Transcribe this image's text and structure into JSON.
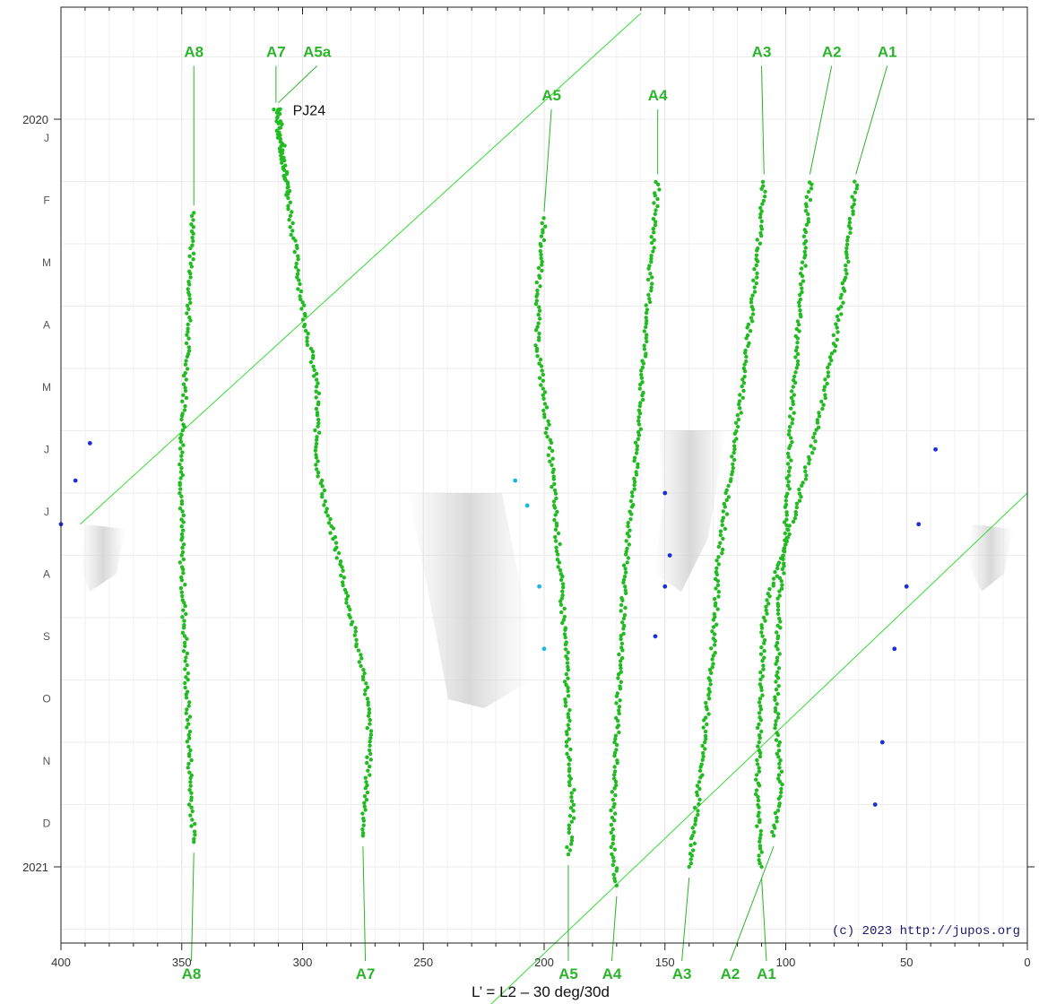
{
  "chart_data": {
    "type": "scatter",
    "title": "",
    "xlabel": "L’ = L2 – 30 deg/30d",
    "ylabel": "",
    "xlim": [
      400,
      0
    ],
    "x_reversed": true,
    "x_ticks": [
      "400",
      "350",
      "300",
      "250",
      "200",
      "150",
      "100",
      "50",
      "0"
    ],
    "y_years": [
      {
        "label": "2020",
        "month_index": 0
      },
      {
        "label": "2021",
        "month_index": 12
      }
    ],
    "y_months": [
      "J",
      "F",
      "M",
      "A",
      "M",
      "J",
      "J",
      "A",
      "S",
      "O",
      "N",
      "D"
    ],
    "ylim_month_index": [
      -1.1,
      13.0
    ],
    "grid": true,
    "credit": "(c) 2023 http://jupos.org",
    "annotation": {
      "text": "PJ24",
      "x": 307,
      "month": -0.15
    },
    "colors": {
      "track": "#22bb22",
      "other": "#111111",
      "blue": "#1a2fd6",
      "cyan": "#19b8e0",
      "label": "#2ab52a",
      "drift_line": "#33dd33"
    },
    "drift_lines": [
      {
        "x1": 392,
        "m1": 6.5,
        "x2": 160,
        "m2": -1.7
      },
      {
        "x1": 230,
        "m1": 14.5,
        "x2": 0,
        "m2": 6.0
      }
    ],
    "series": [
      {
        "name": "A8",
        "points": [
          [
            345,
            1.5
          ],
          [
            346,
            2.2
          ],
          [
            347,
            3
          ],
          [
            348,
            4
          ],
          [
            349,
            4.6
          ],
          [
            350,
            5.3
          ],
          [
            350,
            6
          ],
          [
            350,
            7
          ],
          [
            349,
            8
          ],
          [
            348,
            9
          ],
          [
            347,
            10
          ],
          [
            346,
            11
          ],
          [
            345,
            11.6
          ]
        ],
        "top_label": {
          "x": 345,
          "month": -1
        },
        "bottom_label": {
          "x": 346,
          "month": 13.8
        }
      },
      {
        "name": "A7",
        "points": [
          [
            311,
            -0.15
          ],
          [
            305,
            1.5
          ],
          [
            300,
            3
          ],
          [
            294,
            4.3
          ],
          [
            294,
            5.5
          ],
          [
            290,
            6.3
          ],
          [
            284,
            7.2
          ],
          [
            280,
            8
          ],
          [
            274,
            9
          ],
          [
            272,
            10
          ],
          [
            275,
            11.5
          ]
        ],
        "top_label": {
          "x": 311,
          "month": -1
        },
        "bottom_label": {
          "x": 274,
          "month": 13.8
        }
      },
      {
        "name": "A5a",
        "points": [
          [
            310,
            -0.15
          ],
          [
            306,
            1.2
          ]
        ],
        "top_label": {
          "x": 294,
          "month": -1
        },
        "bottom_label": null
      },
      {
        "name": "A5",
        "points": [
          [
            200,
            1.6
          ],
          [
            202,
            2.5
          ],
          [
            203,
            3.5
          ],
          [
            200,
            4.5
          ],
          [
            197,
            5.5
          ],
          [
            194,
            7
          ],
          [
            191,
            8.5
          ],
          [
            190,
            10
          ],
          [
            188,
            11
          ],
          [
            190,
            11.8
          ]
        ],
        "top_label": {
          "x": 197,
          "month": -0.3
        },
        "bottom_label": {
          "x": 190,
          "month": 13.8
        }
      },
      {
        "name": "A4",
        "points": [
          [
            153,
            1
          ],
          [
            155,
            2
          ],
          [
            157,
            3
          ],
          [
            160,
            4.5
          ],
          [
            163,
            6
          ],
          [
            166,
            7
          ],
          [
            168,
            8.3
          ],
          [
            170,
            10
          ],
          [
            172,
            11.5
          ],
          [
            170,
            12.3
          ]
        ],
        "top_label": {
          "x": 153,
          "month": -0.3
        },
        "bottom_label": {
          "x": 172,
          "month": 13.8
        }
      },
      {
        "name": "A3",
        "points": [
          [
            109,
            1
          ],
          [
            111,
            2
          ],
          [
            114,
            3
          ],
          [
            117,
            4
          ],
          [
            120,
            5
          ],
          [
            124,
            6
          ],
          [
            128,
            7.2
          ],
          [
            130,
            8.5
          ],
          [
            134,
            10
          ],
          [
            138,
            11.5
          ],
          [
            140,
            12
          ]
        ],
        "top_label": {
          "x": 110,
          "month": -1
        },
        "bottom_label": {
          "x": 143,
          "month": 13.8
        }
      },
      {
        "name": "A2",
        "points": [
          [
            90,
            1
          ],
          [
            92,
            2
          ],
          [
            94,
            3
          ],
          [
            96,
            4
          ],
          [
            98,
            5
          ],
          [
            99,
            6
          ],
          [
            101,
            7
          ],
          [
            103,
            8
          ],
          [
            104,
            9.5
          ],
          [
            102,
            10.8
          ],
          [
            105,
            11.5
          ]
        ],
        "top_label": {
          "x": 81,
          "month": -1
        },
        "bottom_label": {
          "x": 123,
          "month": 13.8
        }
      },
      {
        "name": "A1",
        "points": [
          [
            71,
            1
          ],
          [
            74,
            2
          ],
          [
            77,
            3
          ],
          [
            82,
            4
          ],
          [
            87,
            5
          ],
          [
            94,
            6
          ],
          [
            101,
            7
          ],
          [
            106,
            7.5
          ],
          [
            109,
            8
          ],
          [
            110,
            9
          ],
          [
            111,
            10
          ],
          [
            112,
            11
          ],
          [
            110,
            12
          ]
        ],
        "top_label": {
          "x": 58,
          "month": -1
        },
        "bottom_label": {
          "x": 108,
          "month": 13.8
        }
      },
      {
        "name": "",
        "color": "blue",
        "points": [
          [
            400,
            6.5
          ],
          [
            394,
            5.8
          ],
          [
            388,
            5.2
          ],
          [
            38,
            5.3
          ],
          [
            45,
            6.5
          ],
          [
            50,
            7.5
          ],
          [
            55,
            8.5
          ],
          [
            60,
            10
          ],
          [
            63,
            11
          ],
          [
            154,
            8.3
          ],
          [
            150,
            7.5
          ],
          [
            148,
            7
          ],
          [
            150,
            6
          ]
        ]
      },
      {
        "name": "",
        "color": "cyan",
        "points": [
          [
            207,
            6.2
          ],
          [
            202,
            7.5
          ],
          [
            200,
            8.5
          ],
          [
            212,
            5.8
          ]
        ]
      }
    ]
  }
}
